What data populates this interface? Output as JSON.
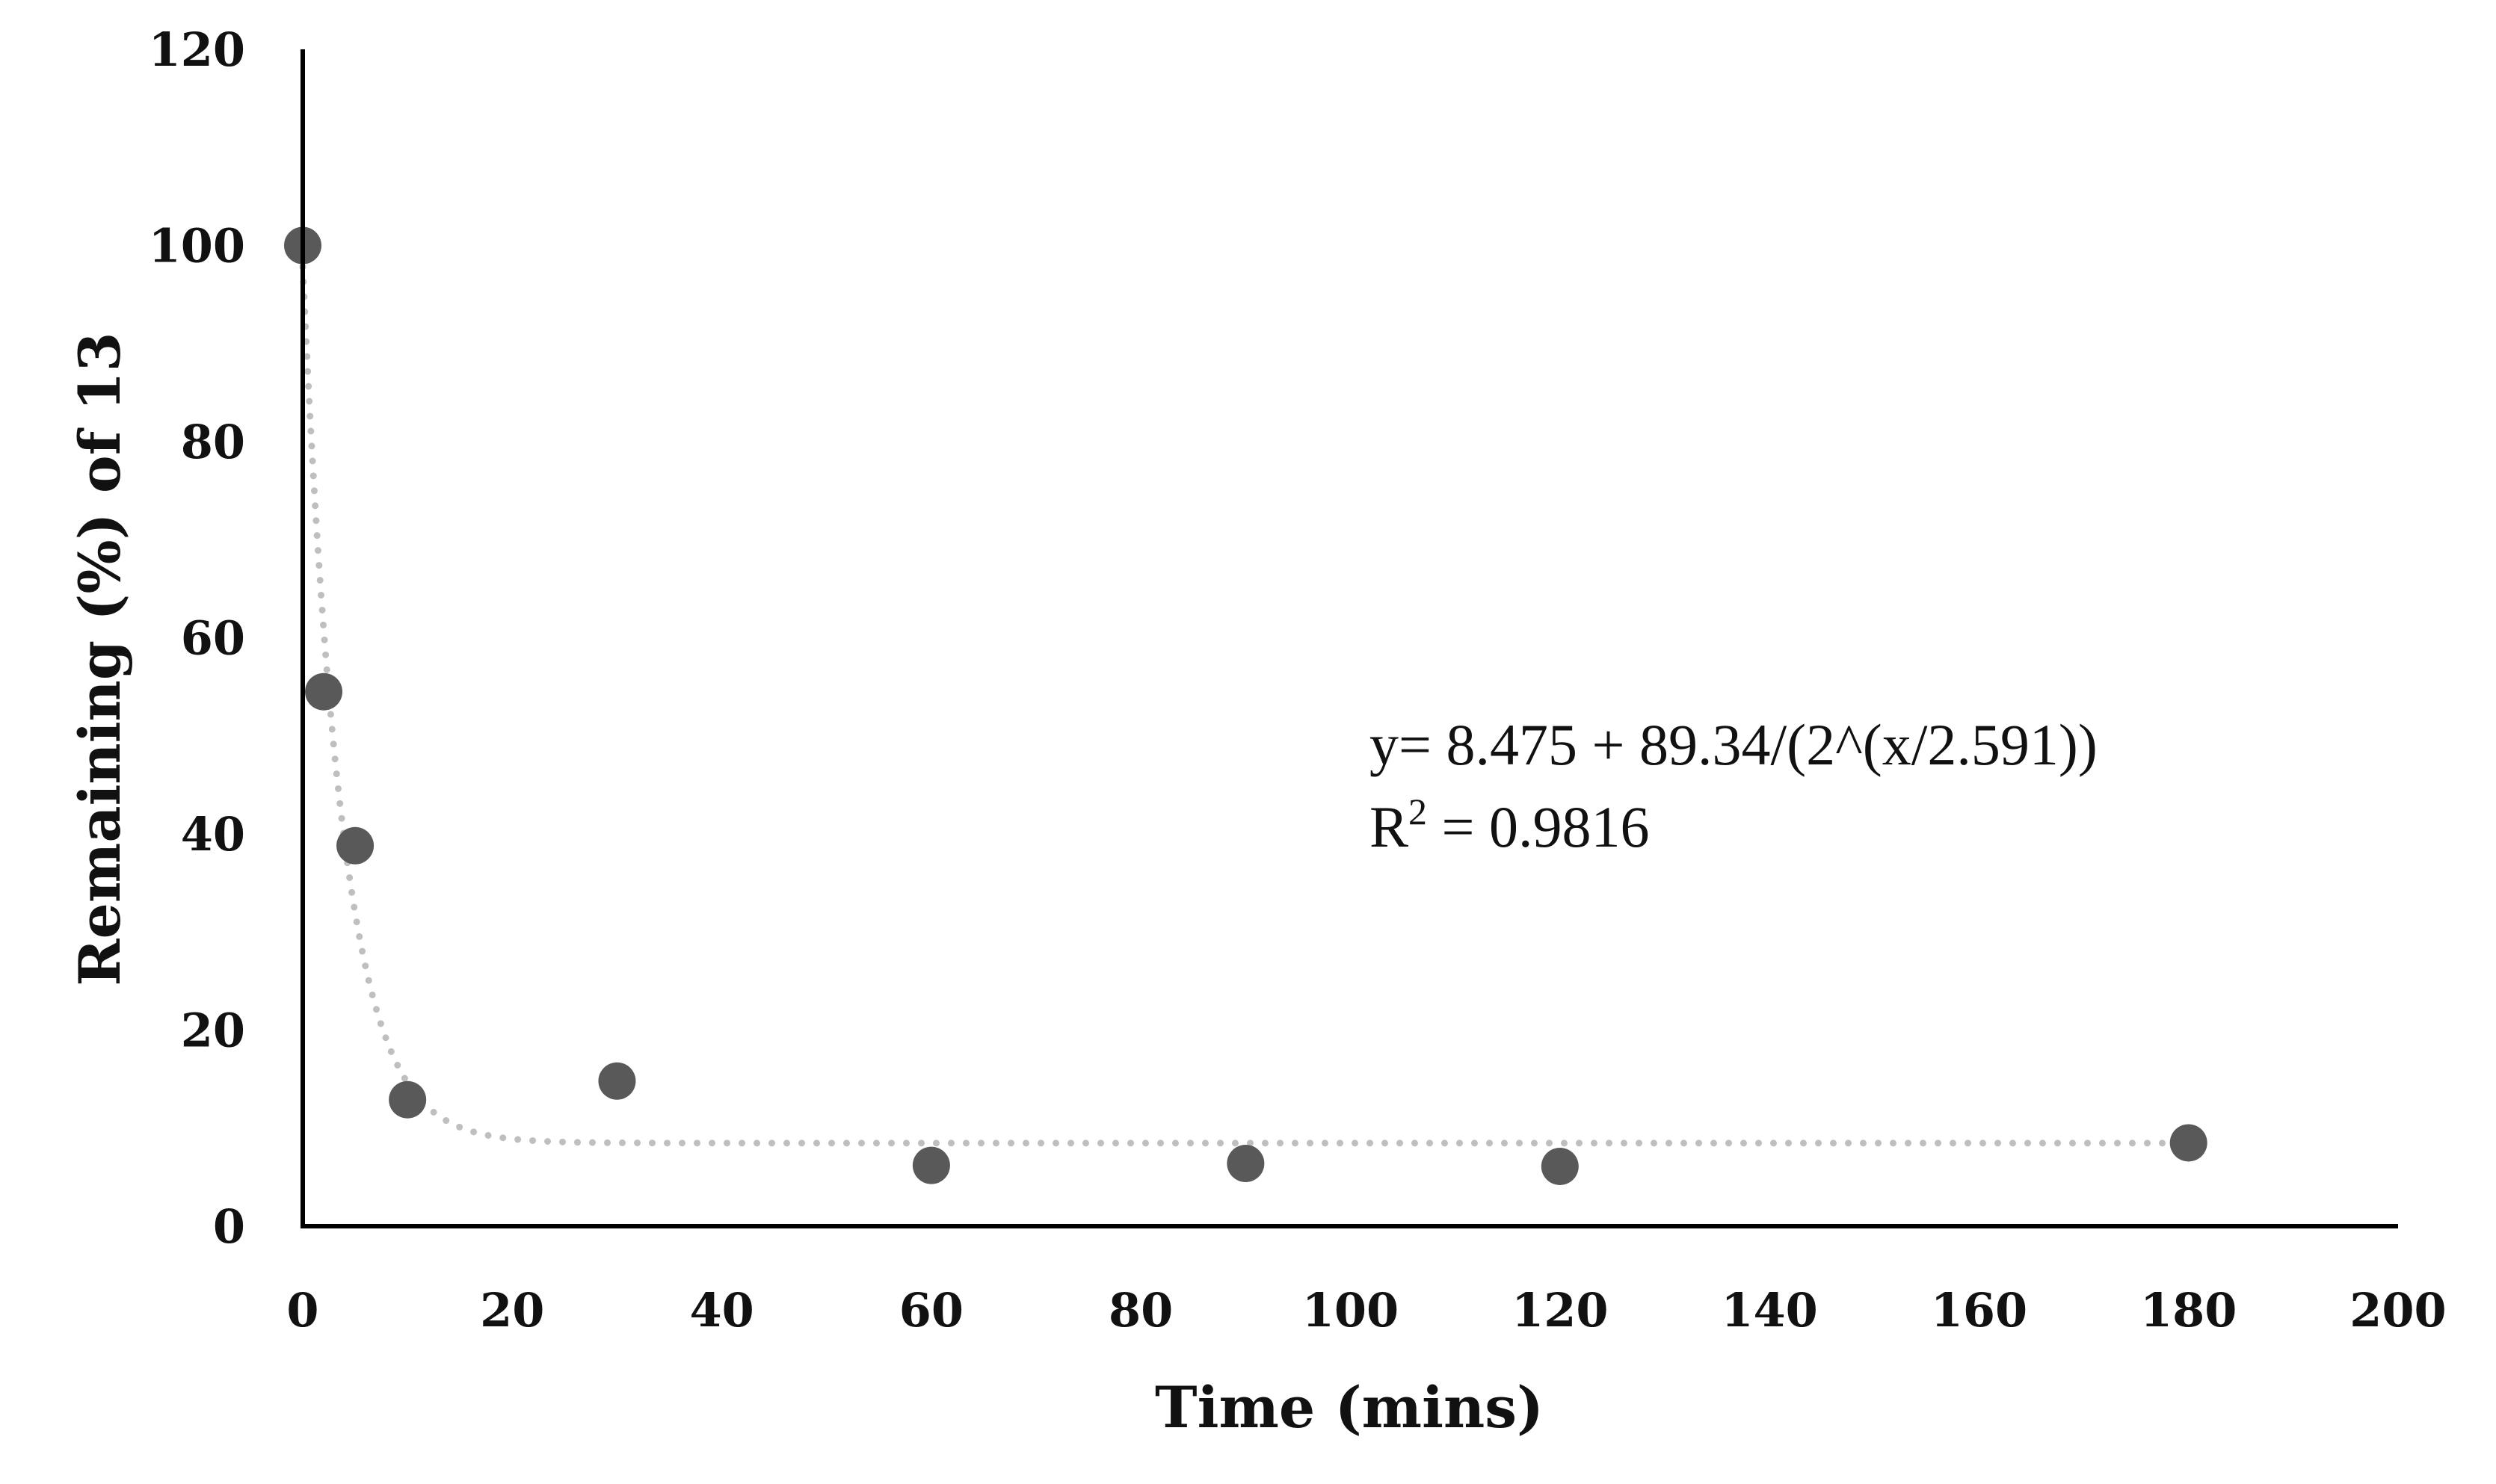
{
  "chart_data": {
    "type": "scatter",
    "title": "",
    "xlabel": "Time (mins)",
    "ylabel": "Remaining (%)  of 13",
    "xlim": [
      0,
      200
    ],
    "ylim": [
      0,
      120
    ],
    "x_ticks": [
      0,
      20,
      40,
      60,
      80,
      100,
      120,
      140,
      160,
      180,
      200
    ],
    "y_ticks": [
      0,
      20,
      40,
      60,
      80,
      100,
      120
    ],
    "grid": false,
    "legend": "none",
    "series": [
      {
        "x": [
          0,
          2,
          5,
          10,
          30,
          60,
          90,
          120,
          180
        ],
        "y": [
          100,
          54.5,
          38.8,
          12.9,
          14.8,
          6.2,
          6.4,
          6.1,
          8.5
        ],
        "color": "#595959"
      }
    ],
    "trendline": {
      "type": "exponential-decay",
      "a": 8.475,
      "b": 89.34,
      "half_life": 2.591,
      "color": "#bfbfbf",
      "style": "dotted"
    },
    "annotations": {
      "equation": "y= 8.475 + 89.34/(2^(x/2.591))",
      "r2_prefix": "R",
      "r2_sup": "2",
      "r2_value": " = 0.9816"
    }
  }
}
